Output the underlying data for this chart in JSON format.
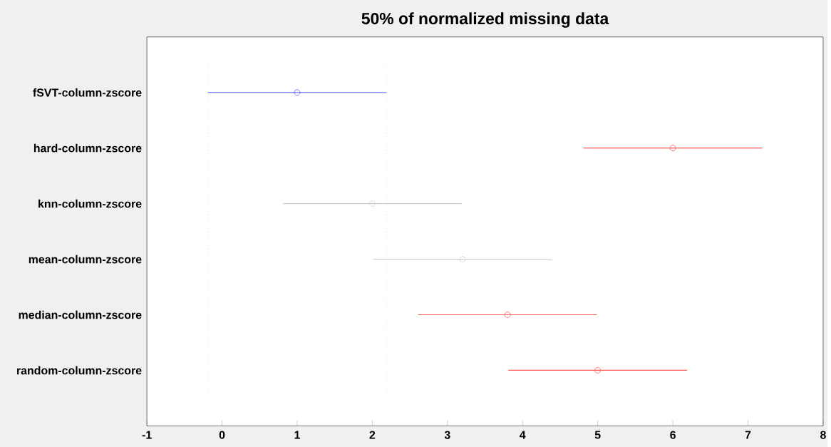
{
  "chart_data": {
    "type": "scatter",
    "orientation": "horizontal",
    "title": "50% of normalized missing data",
    "categories": [
      "fSVT-column-zscore",
      "hard-column-zscore",
      "knn-column-zscore",
      "mean-column-zscore",
      "median-column-zscore",
      "random-column-zscore"
    ],
    "values": [
      1.0,
      6.0,
      2.0,
      3.2,
      3.8,
      5.0
    ],
    "errors": [
      1.19,
      1.19,
      1.19,
      1.19,
      1.19,
      1.19
    ],
    "colors": [
      "#6060ff",
      "#ff4c4c",
      "#d0d0d0",
      "#d0d0d0",
      "#ff5c5c",
      "#ff5c5c"
    ],
    "xlim": [
      -1,
      8
    ],
    "xticks": [
      -1,
      0,
      1,
      2,
      3,
      4,
      5,
      6,
      7,
      8
    ],
    "marker": "circle",
    "grid": false,
    "ref_lines": [
      {
        "axis": "x",
        "value": -0.19,
        "color": "#d8d8d8",
        "line_style": "dotted"
      },
      {
        "axis": "x",
        "value": 2.19,
        "color": "#d8d8d8",
        "line_style": "dotted"
      }
    ]
  }
}
